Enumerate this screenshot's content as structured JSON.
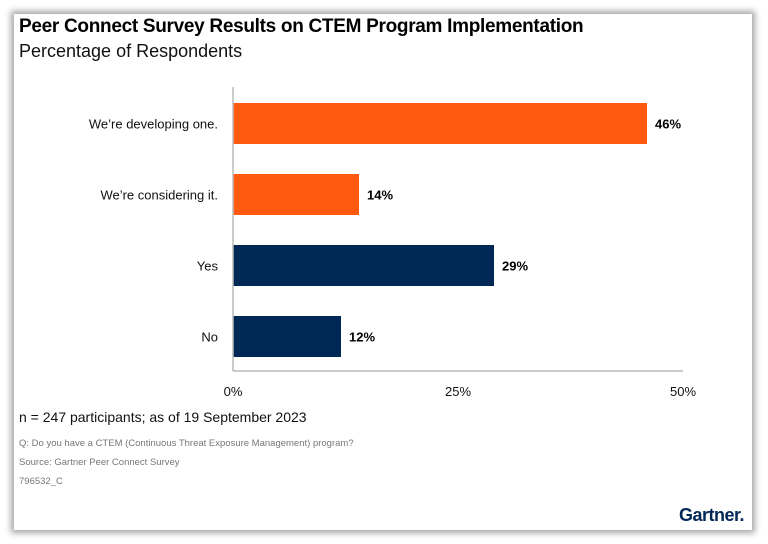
{
  "title": "Peer Connect Survey Results on CTEM Program Implementation",
  "subtitle": "Percentage of Respondents",
  "chart_data": {
    "type": "bar",
    "orientation": "horizontal",
    "categories": [
      "We’re developing one.",
      "We’re considering it.",
      "Yes",
      "No"
    ],
    "values": [
      46,
      14,
      29,
      12
    ],
    "data_labels": [
      "46%",
      "14%",
      "29%",
      "12%"
    ],
    "bar_colors": [
      "#FF5A0F",
      "#FF5A0F",
      "#002856",
      "#002856"
    ],
    "xlim": [
      0,
      50
    ],
    "xticks": [
      "0%",
      "25%",
      "50%"
    ],
    "grid": false
  },
  "footer": {
    "note": "n = 247 participants; as of 19 September 2023",
    "question": "Q: Do you have a CTEM (Continuous Threat Exposure Management) program?",
    "source": "Source: Gartner Peer Connect Survey",
    "id": "796532_C",
    "logo": "Gartner."
  }
}
